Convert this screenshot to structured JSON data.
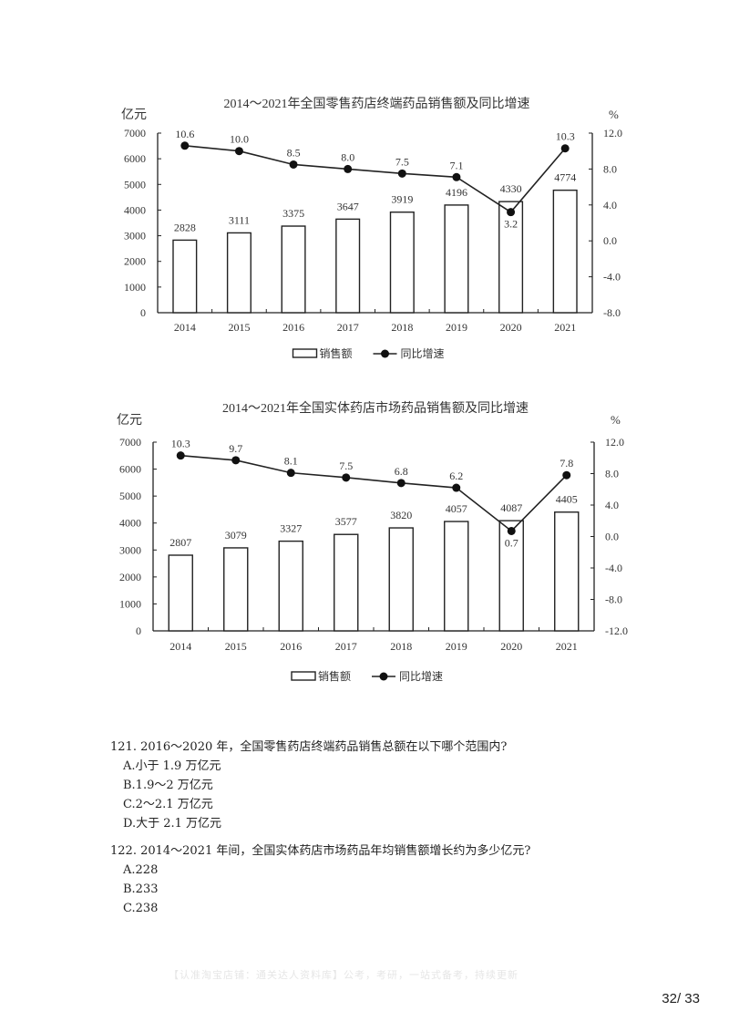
{
  "chart_data": [
    {
      "type": "bar+line",
      "title": "2014～2021年全国零售药店终端药品销售额及同比增速",
      "categories": [
        "2014",
        "2015",
        "2016",
        "2017",
        "2018",
        "2019",
        "2020",
        "2021"
      ],
      "series": [
        {
          "name": "销售额",
          "type": "bar",
          "axis": "left",
          "values": [
            2828,
            3111,
            3375,
            3647,
            3919,
            4196,
            4330,
            4774
          ]
        },
        {
          "name": "同比增速",
          "type": "line",
          "axis": "right",
          "values": [
            10.6,
            10.0,
            8.5,
            8.0,
            7.5,
            7.1,
            3.2,
            10.3
          ]
        }
      ],
      "ylabel_left": "亿元",
      "ylabel_right": "%",
      "ylim_left": [
        0,
        7000
      ],
      "yticks_left": [
        "0",
        "1000",
        "2000",
        "3000",
        "4000",
        "5000",
        "6000",
        "7000"
      ],
      "ylim_right": [
        -8.0,
        12.0
      ],
      "yticks_right": [
        "-8.0",
        "-4.0",
        "0.0",
        "4.0",
        "8.0",
        "12.0"
      ],
      "legend": [
        "销售额",
        "同比增速"
      ],
      "legend_position": "bottom",
      "grid": false
    },
    {
      "type": "bar+line",
      "title": "2014～2021年全国实体药店市场药品销售额及同比增速",
      "categories": [
        "2014",
        "2015",
        "2016",
        "2017",
        "2018",
        "2019",
        "2020",
        "2021"
      ],
      "series": [
        {
          "name": "销售额",
          "type": "bar",
          "axis": "left",
          "values": [
            2807,
            3079,
            3327,
            3577,
            3820,
            4057,
            4087,
            4405
          ]
        },
        {
          "name": "同比增速",
          "type": "line",
          "axis": "right",
          "values": [
            10.3,
            9.7,
            8.1,
            7.5,
            6.8,
            6.2,
            0.7,
            7.8
          ]
        }
      ],
      "ylabel_left": "亿元",
      "ylabel_right": "%",
      "ylim_left": [
        0,
        7000
      ],
      "yticks_left": [
        "0",
        "1000",
        "2000",
        "3000",
        "4000",
        "5000",
        "6000",
        "7000"
      ],
      "ylim_right": [
        -12.0,
        12.0
      ],
      "yticks_right": [
        "-12.0",
        "-8.0",
        "-4.0",
        "0.0",
        "4.0",
        "8.0",
        "12.0"
      ],
      "legend": [
        "销售额",
        "同比增速"
      ],
      "legend_position": "bottom",
      "grid": false
    }
  ],
  "questions": [
    {
      "stem": "121. 2016～2020 年，全国零售药店终端药品销售总额在以下哪个范围内?",
      "options": [
        "A.小于 1.9 万亿元",
        "B.1.9～2 万亿元",
        "C.2～2.1 万亿元",
        "D.大于 2.1 万亿元"
      ]
    },
    {
      "stem": "122. 2014～2021 年间，全国实体药店市场药品年均销售额增长约为多少亿元?",
      "options": [
        "A.228",
        "B.233",
        "C.238"
      ]
    }
  ],
  "footer": {
    "note": "【认准淘宝店铺：通关达人资料库】公考，考研，一站式备考，持续更新",
    "page": "32/ 33"
  }
}
